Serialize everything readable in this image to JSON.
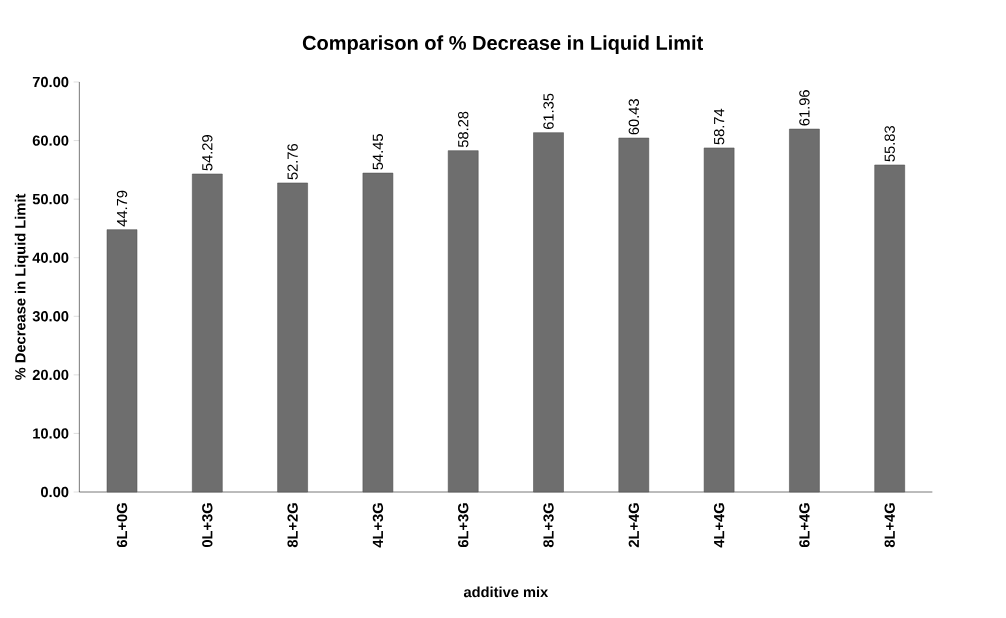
{
  "chart_data": {
    "type": "bar",
    "title": "Comparison of % Decrease in Liquid Limit",
    "xlabel": "additive mix",
    "ylabel": "% Decrease in Liquid Limit",
    "categories": [
      "6L+0G",
      "0L+3G",
      "8L+2G",
      "4L+3G",
      "6L+3G",
      "8L+3G",
      "2L+4G",
      "4L+4G",
      "6L+4G",
      "8L+4G"
    ],
    "values": [
      44.79,
      54.29,
      52.76,
      54.45,
      58.28,
      61.35,
      60.43,
      58.74,
      61.96,
      55.83
    ],
    "color": "#6e6e6e",
    "ylim": [
      0,
      70
    ],
    "yticks": [
      {
        "value": 0,
        "label": "0.00"
      },
      {
        "value": 10,
        "label": "10.00"
      },
      {
        "value": 20,
        "label": "20.00"
      },
      {
        "value": 30,
        "label": "30.00"
      },
      {
        "value": 40,
        "label": "40.00"
      },
      {
        "value": 50,
        "label": "50.00"
      },
      {
        "value": 60,
        "label": "60.00"
      },
      {
        "value": 70,
        "label": "70.00"
      }
    ],
    "data_labels": true
  }
}
